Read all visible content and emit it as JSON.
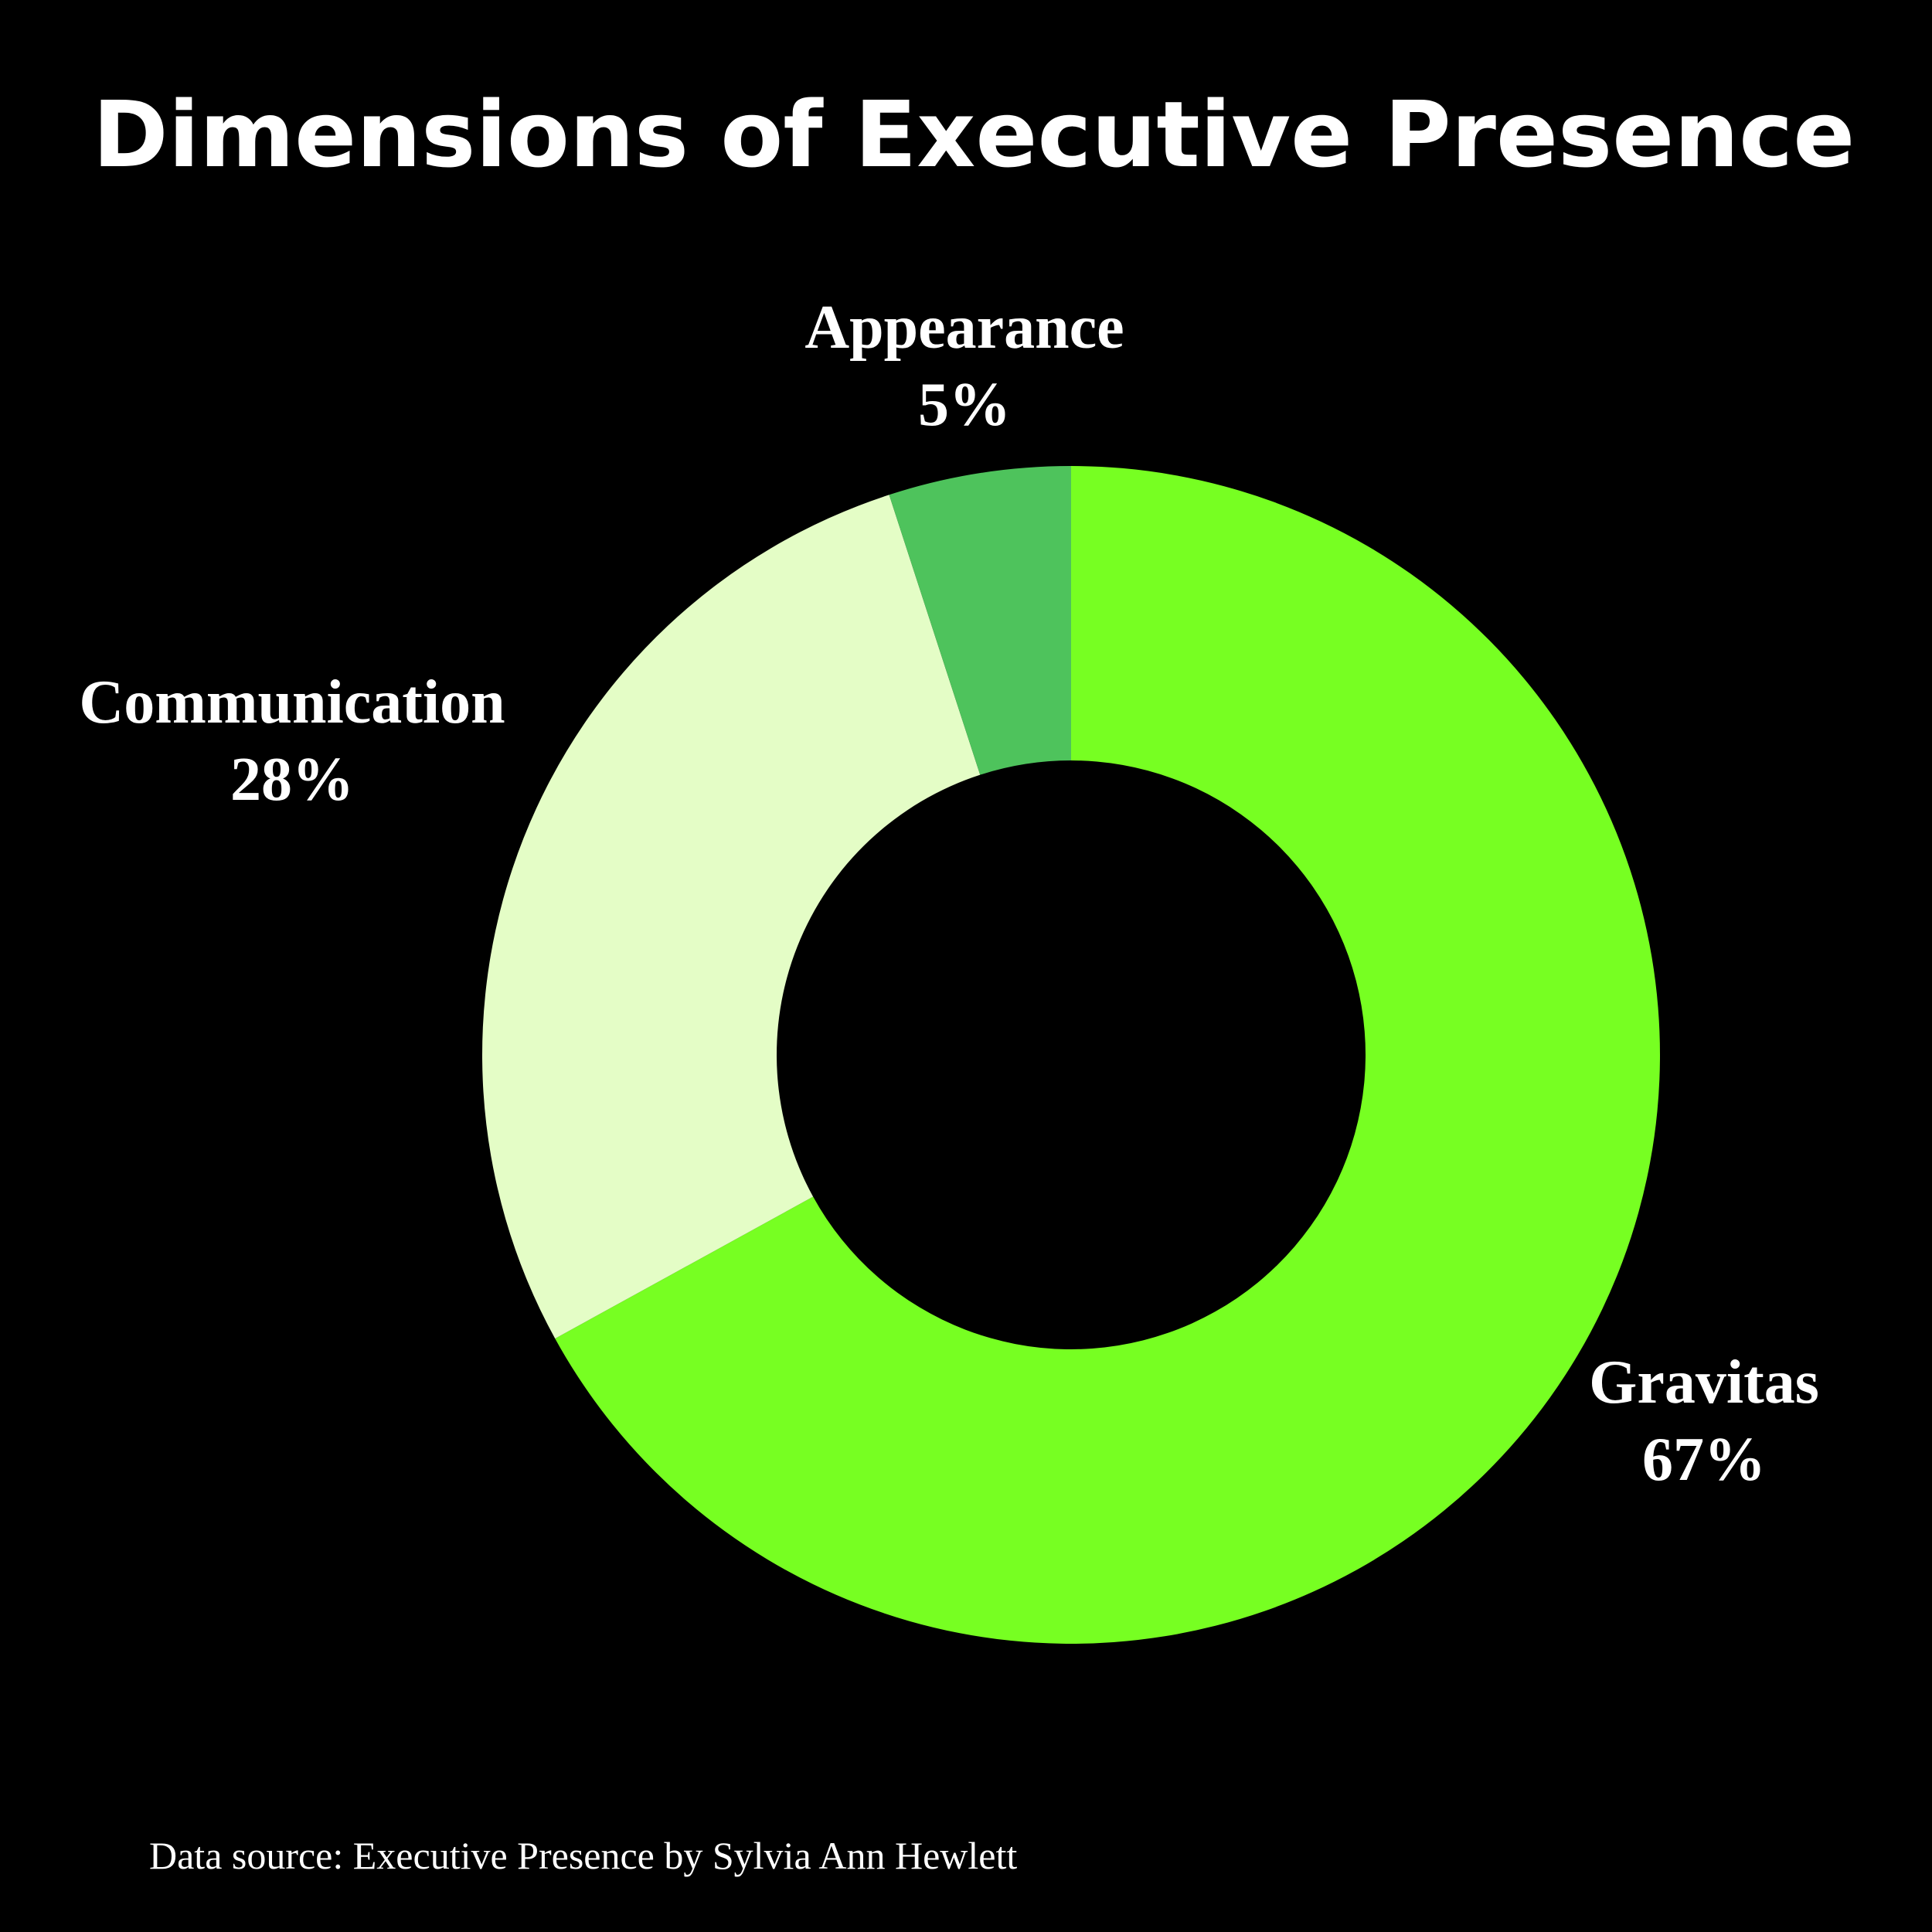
{
  "chart_data": {
    "type": "pie",
    "donut": true,
    "title": "Dimensions of Executive Presence",
    "slices": [
      {
        "label": "Gravitas",
        "value": 67,
        "value_label": "67%",
        "color": "#77ff22"
      },
      {
        "label": "Communication",
        "value": 28,
        "value_label": "28%",
        "color": "#e4fdc6"
      },
      {
        "label": "Appearance",
        "value": 5,
        "value_label": "5%",
        "color": "#4ec35c"
      }
    ],
    "source": "Data source: Executive Presence by Sylvia Ann Hewlett"
  },
  "colors": {
    "background": "#000000",
    "text": "#ffffff"
  }
}
